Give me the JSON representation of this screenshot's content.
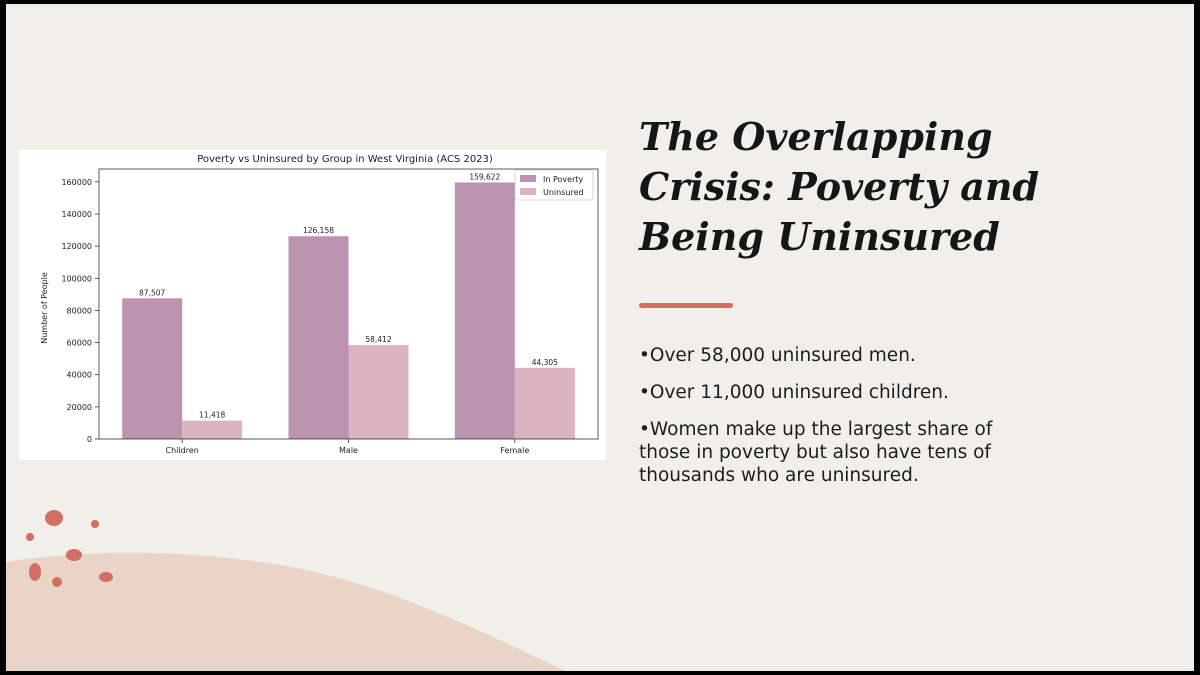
{
  "slide": {
    "title_lines": [
      "The Overlapping",
      "Crisis: Poverty and",
      "Being Uninsured"
    ],
    "bullets": [
      "•Over 58,000 uninsured men.",
      "•Over 11,000 uninsured children.",
      "•Women make up the largest share of those in poverty but also have tens of thousands who are uninsured."
    ],
    "colors": {
      "background": "#f1efe9",
      "accent": "#d4705e",
      "wave": "#ead3c7",
      "dots": "#d26f62"
    }
  },
  "chart_data": {
    "type": "bar",
    "title": "Poverty vs Uninsured by Group in West Virginia (ACS 2023)",
    "xlabel": "",
    "ylabel": "Number of People",
    "categories": [
      "Children",
      "Male",
      "Female"
    ],
    "series": [
      {
        "name": "In Poverty",
        "values": [
          87507,
          126158,
          159622
        ],
        "color": "#bc93af",
        "labels": [
          "87,507",
          "126,158",
          "159,622"
        ]
      },
      {
        "name": "Uninsured",
        "values": [
          11418,
          58412,
          44305
        ],
        "color": "#dcb4bf",
        "labels": [
          "11,418",
          "58,412",
          "44,305"
        ]
      }
    ],
    "ylim": [
      0,
      168000
    ],
    "yticks": [
      0,
      20000,
      40000,
      60000,
      80000,
      100000,
      120000,
      140000,
      160000
    ],
    "grid": false,
    "legend": "top-right"
  }
}
